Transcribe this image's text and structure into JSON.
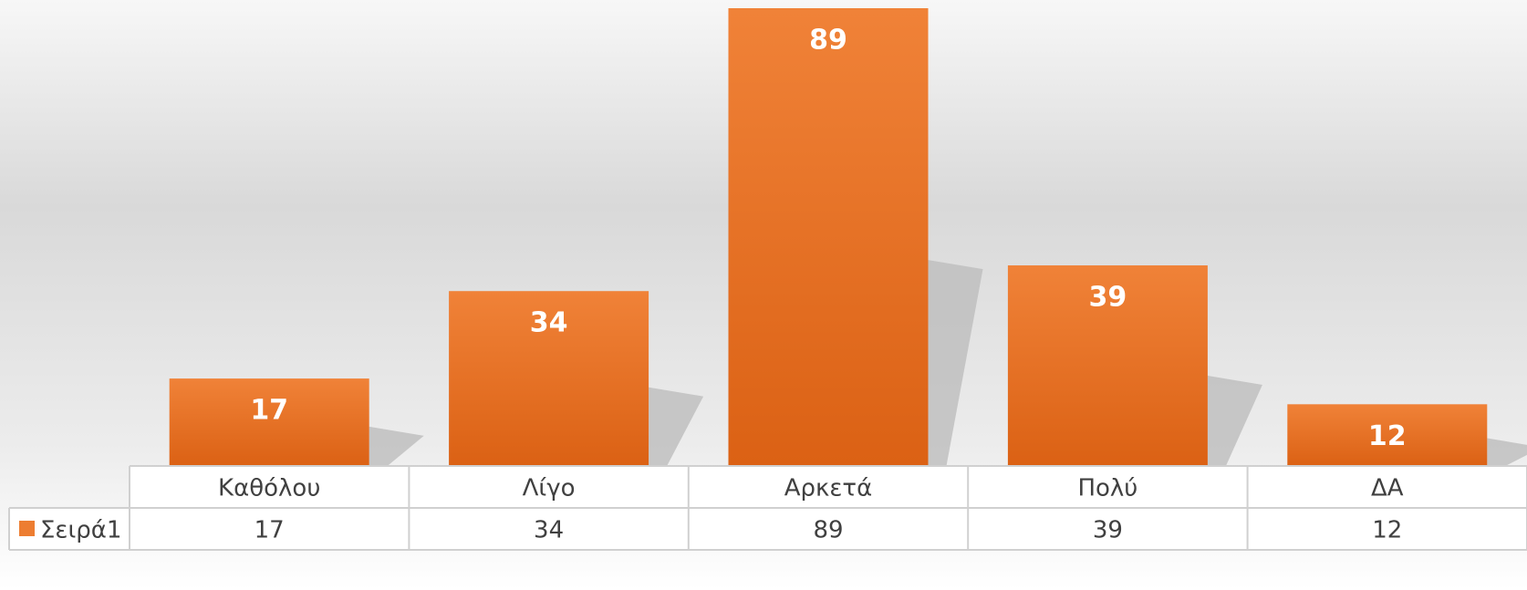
{
  "chart_data": {
    "type": "bar",
    "categories": [
      "Καθόλου",
      "Λίγο",
      "Αρκετά",
      "Πολύ",
      "ΔΑ"
    ],
    "series": [
      {
        "name": "Σειρά1",
        "color": "#ed7d31",
        "values": [
          17,
          34,
          89,
          39,
          12
        ]
      }
    ],
    "data_table": true
  }
}
